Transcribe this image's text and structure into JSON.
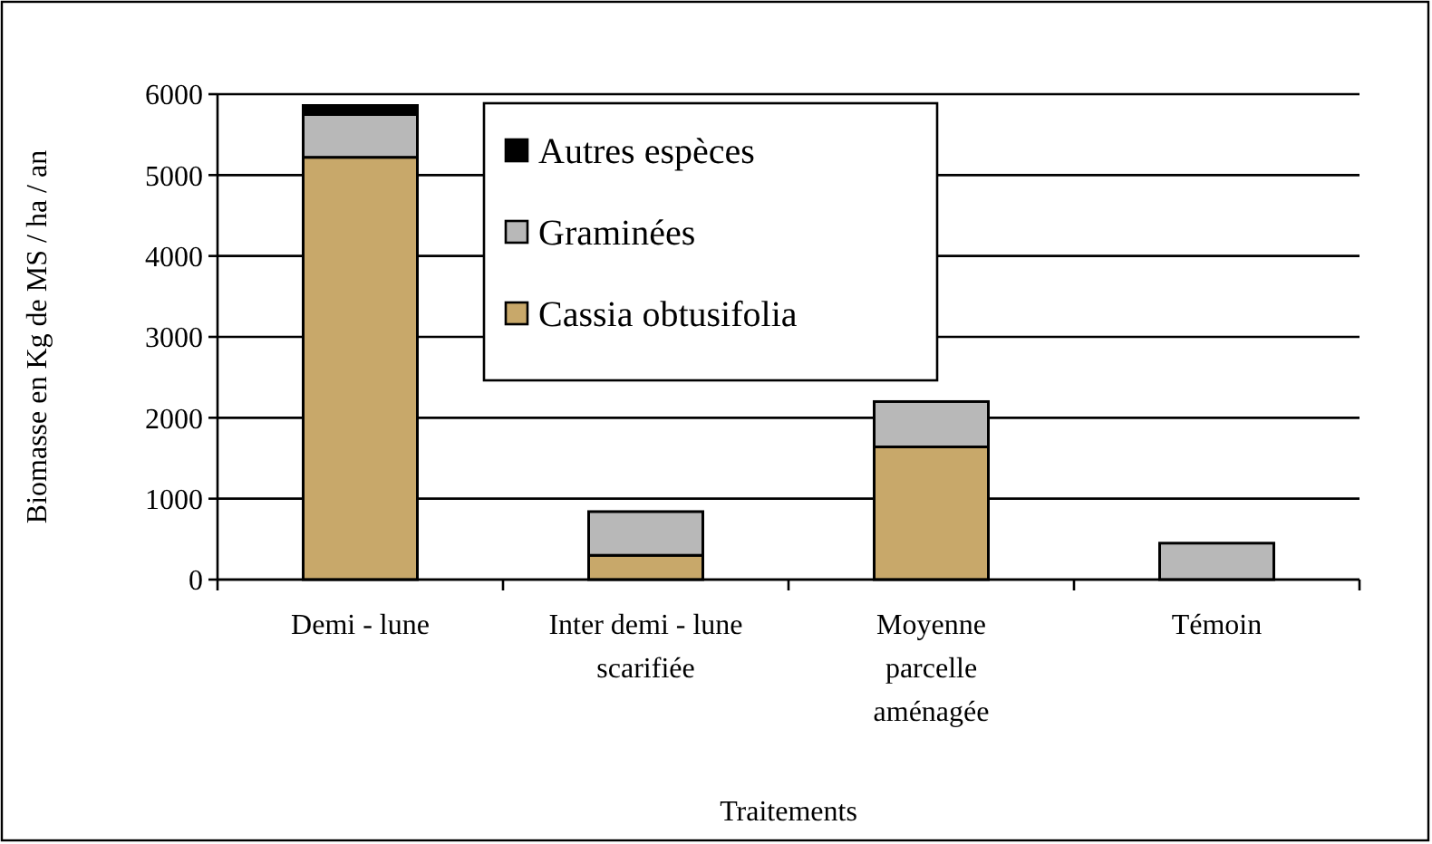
{
  "chart_data": {
    "type": "bar",
    "stacked": true,
    "xlabel": "Traitements",
    "ylabel": "Biomasse en Kg de MS / ha / an",
    "categories": [
      "Demi - lune",
      "Inter demi - lune\nscarifiée",
      "Moyenne\nparcelle\naménagée",
      "Témoin"
    ],
    "series": [
      {
        "name": "Cassia obtusifolia",
        "color": "#c8a86a",
        "values": [
          5220,
          300,
          1640,
          0
        ]
      },
      {
        "name": "Graminées",
        "color": "#b8b8b8",
        "values": [
          530,
          540,
          560,
          450
        ]
      },
      {
        "name": "Autres espèces",
        "color": "#000000",
        "values": [
          110,
          0,
          0,
          0
        ]
      }
    ],
    "ylim": [
      0,
      6000
    ],
    "yticks": [
      0,
      1000,
      2000,
      3000,
      4000,
      5000,
      6000
    ],
    "grid": "y",
    "legend": "top"
  }
}
